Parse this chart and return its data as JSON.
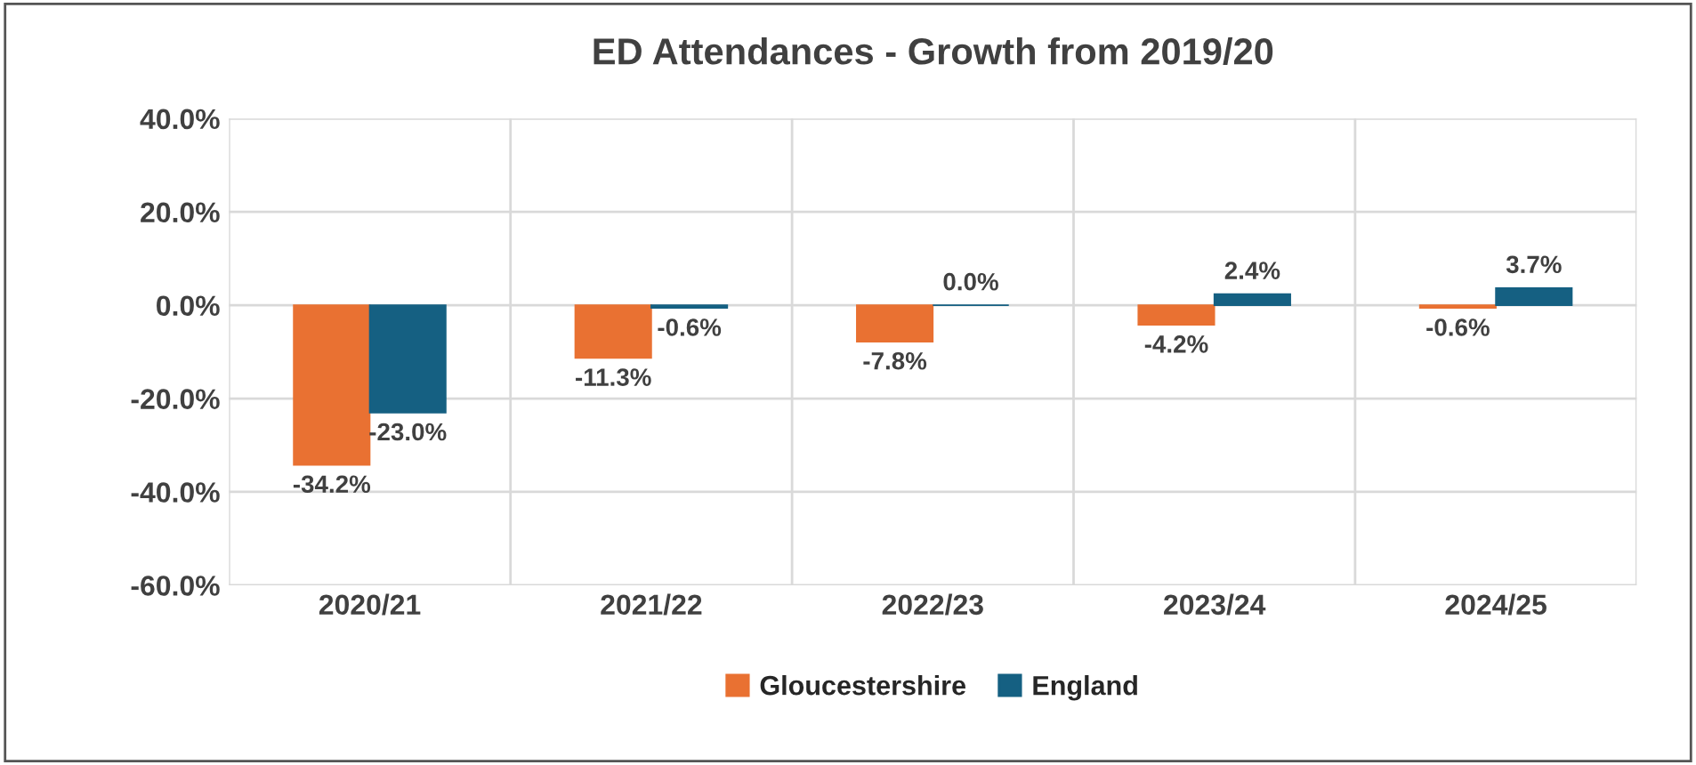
{
  "chart_data": {
    "type": "bar",
    "title": "ED Attendances - Growth from 2019/20",
    "categories": [
      "2020/21",
      "2021/22",
      "2022/23",
      "2023/24",
      "2024/25"
    ],
    "series": [
      {
        "name": "Gloucestershire",
        "color": "#e97132",
        "values": [
          -34.2,
          -11.3,
          -7.8,
          -4.2,
          -0.6
        ],
        "value_labels": [
          "-34.2%",
          "-11.3%",
          "-7.8%",
          "-4.2%",
          "-0.6%"
        ]
      },
      {
        "name": "England",
        "color": "#156082",
        "values": [
          -23.0,
          -0.6,
          0.0,
          2.4,
          3.7
        ],
        "value_labels": [
          "-23.0%",
          "-0.6%",
          "0.0%",
          "2.4%",
          "3.7%"
        ]
      }
    ],
    "ylim": [
      -60,
      40
    ],
    "yticks": [
      {
        "value": -60,
        "label": "-60.0%"
      },
      {
        "value": -40,
        "label": "-40.0%"
      },
      {
        "value": -20,
        "label": "-20.0%"
      },
      {
        "value": 0,
        "label": "0.0%"
      },
      {
        "value": 20,
        "label": "20.0%"
      },
      {
        "value": 40,
        "label": "40.0%"
      }
    ],
    "grid": true,
    "legend": "bottom"
  }
}
